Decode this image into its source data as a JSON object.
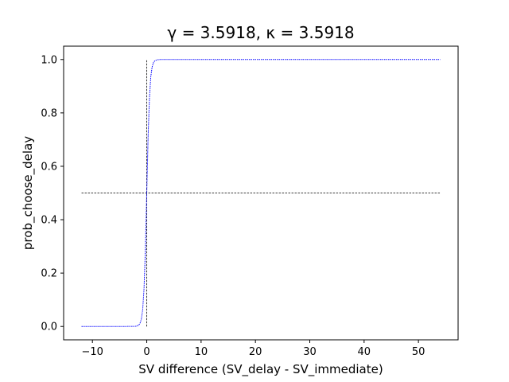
{
  "chart_data": {
    "type": "line",
    "title": "γ = 3.5918, κ = 3.5918",
    "xlabel": "SV difference (SV_delay - SV_immediate)",
    "ylabel": "prob_choose_delay",
    "xlim": [
      -15.3,
      57.3
    ],
    "ylim": [
      -0.05,
      1.05
    ],
    "xticks": [
      -10,
      0,
      10,
      20,
      30,
      40,
      50
    ],
    "yticks": [
      0.0,
      0.2,
      0.4,
      0.6,
      0.8,
      1.0
    ],
    "xtick_labels": [
      "−10",
      "0",
      "10",
      "20",
      "30",
      "40",
      "50"
    ],
    "ytick_labels": [
      "0.0",
      "0.2",
      "0.4",
      "0.6",
      "0.8",
      "1.0"
    ],
    "grid": false,
    "legend": "none",
    "series": [
      {
        "style": "dotted",
        "color": "#0000ff",
        "x": [
          -12,
          -5,
          -4,
          -3,
          -2.5,
          -2,
          -1.5,
          -1.25,
          -1,
          -0.75,
          -0.5,
          -0.25,
          0,
          0.25,
          0.5,
          0.75,
          1,
          1.25,
          1.5,
          2,
          2.5,
          3,
          4,
          5,
          10,
          20,
          30,
          40,
          54
        ],
        "y": [
          0,
          0,
          0,
          0.0004,
          0.0001,
          0.0008,
          0.0045,
          0.011,
          0.027,
          0.063,
          0.142,
          0.289,
          0.5,
          0.711,
          0.858,
          0.937,
          0.973,
          0.989,
          0.9955,
          0.9992,
          0.9999,
          1,
          1,
          1,
          1,
          1,
          1,
          1,
          1
        ]
      }
    ],
    "reference_lines": [
      {
        "orientation": "horizontal",
        "value": 0.5,
        "x_range": [
          -12,
          54
        ],
        "color": "#000000",
        "style": "dashed"
      },
      {
        "orientation": "vertical",
        "value": 0,
        "y_range": [
          0,
          1
        ],
        "color": "#000000",
        "style": "dashed"
      }
    ]
  }
}
